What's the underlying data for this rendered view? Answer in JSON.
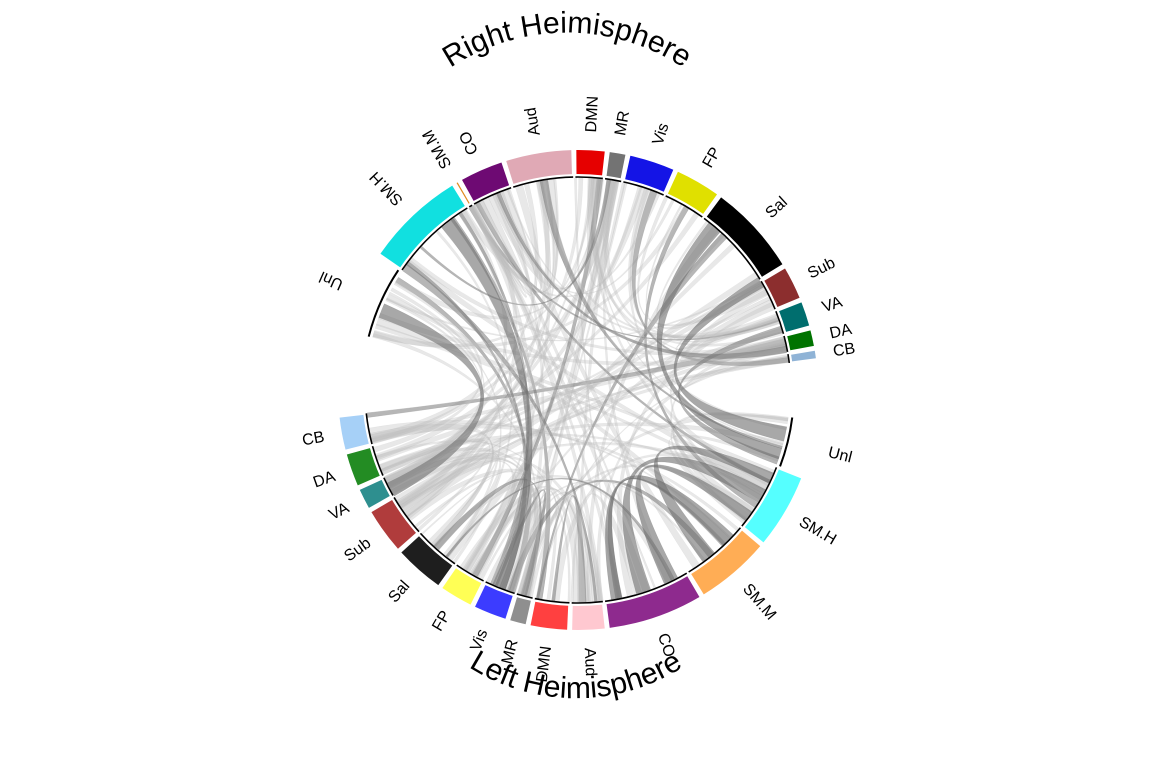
{
  "diagram": {
    "type": "chord",
    "title_top": "Right Heimisphere",
    "title_bottom": "Left Heimisphere",
    "link_color": "#9e9e9e",
    "right_hemisphere": [
      {
        "label": "Unl",
        "color": "#000000",
        "outline_only": true
      },
      {
        "label": "SM.H",
        "color": "#11e0e0"
      },
      {
        "label": "SM.M",
        "color": "#e08a1e"
      },
      {
        "label": "CO",
        "color": "#6e0a73"
      },
      {
        "label": "Aud",
        "color": "#e0a9b5"
      },
      {
        "label": "DMN",
        "color": "#e60000"
      },
      {
        "label": "MR",
        "color": "#737373"
      },
      {
        "label": "Vis",
        "color": "#1414e6"
      },
      {
        "label": "FP",
        "color": "#e0e000"
      },
      {
        "label": "Sal",
        "color": "#000000"
      },
      {
        "label": "Sub",
        "color": "#8c2e2e"
      },
      {
        "label": "VA",
        "color": "#006e6e"
      },
      {
        "label": "DA",
        "color": "#007300"
      },
      {
        "label": "CB",
        "color": "#8fb3d6"
      }
    ],
    "left_hemisphere": [
      {
        "label": "Unl",
        "color": "#000000",
        "outline_only": true
      },
      {
        "label": "SM.H",
        "color": "#55ffff"
      },
      {
        "label": "SM.M",
        "color": "#ffad55"
      },
      {
        "label": "CO",
        "color": "#8e2a8e"
      },
      {
        "label": "Aud",
        "color": "#ffc8d0"
      },
      {
        "label": "DMN",
        "color": "#ff4040"
      },
      {
        "label": "MR",
        "color": "#8f8f8f"
      },
      {
        "label": "Vis",
        "color": "#3c3cff"
      },
      {
        "label": "FP",
        "color": "#ffff55"
      },
      {
        "label": "Sal",
        "color": "#1e1e1e"
      },
      {
        "label": "Sub",
        "color": "#b03c3c"
      },
      {
        "label": "VA",
        "color": "#2e8f8f"
      },
      {
        "label": "DA",
        "color": "#238c23"
      },
      {
        "label": "CB",
        "color": "#a6d0f7"
      }
    ]
  }
}
